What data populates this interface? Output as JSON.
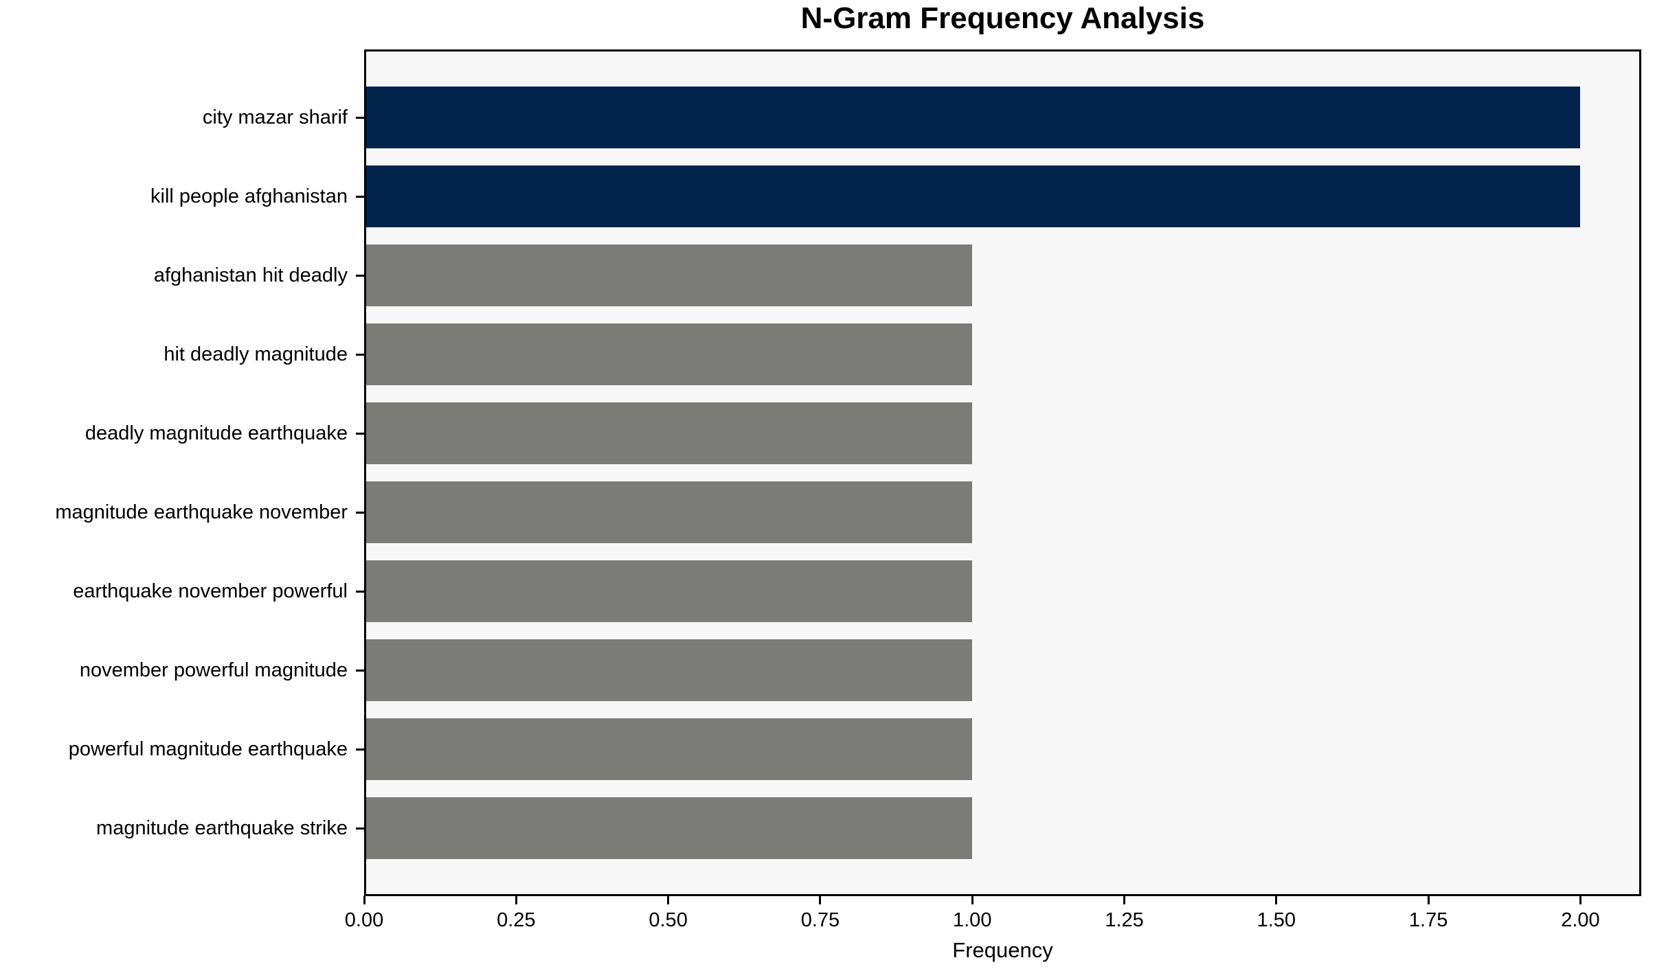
{
  "chart_data": {
    "type": "bar",
    "orientation": "horizontal",
    "title": "N-Gram Frequency Analysis",
    "xlabel": "Frequency",
    "ylabel": "",
    "categories": [
      "city mazar sharif",
      "kill people afghanistan",
      "afghanistan hit deadly",
      "hit deadly magnitude",
      "deadly magnitude earthquake",
      "magnitude earthquake november",
      "earthquake november powerful",
      "november powerful magnitude",
      "powerful magnitude earthquake",
      "magnitude earthquake strike"
    ],
    "values": [
      2,
      2,
      1,
      1,
      1,
      1,
      1,
      1,
      1,
      1
    ],
    "bar_colors": [
      "#02234c",
      "#02234c",
      "#7b7b78",
      "#7b7b78",
      "#7b7b78",
      "#7b7b78",
      "#7b7b78",
      "#7b7b78",
      "#7b7b78",
      "#7b7b78"
    ],
    "xlim": [
      0,
      2.1
    ],
    "xticks": [
      {
        "value": 0.0,
        "label": "0.00"
      },
      {
        "value": 0.25,
        "label": "0.25"
      },
      {
        "value": 0.5,
        "label": "0.50"
      },
      {
        "value": 0.75,
        "label": "0.75"
      },
      {
        "value": 1.0,
        "label": "1.00"
      },
      {
        "value": 1.25,
        "label": "1.25"
      },
      {
        "value": 1.5,
        "label": "1.50"
      },
      {
        "value": 1.75,
        "label": "1.75"
      },
      {
        "value": 2.0,
        "label": "2.00"
      }
    ],
    "grid": false,
    "legend": null,
    "colors": {
      "highlight_bar": "#02234c",
      "default_bar": "#7b7b78",
      "plot_background": "#f7f7f7",
      "figure_background": "#ffffff",
      "spine": "#000000",
      "text": "#000000"
    }
  }
}
